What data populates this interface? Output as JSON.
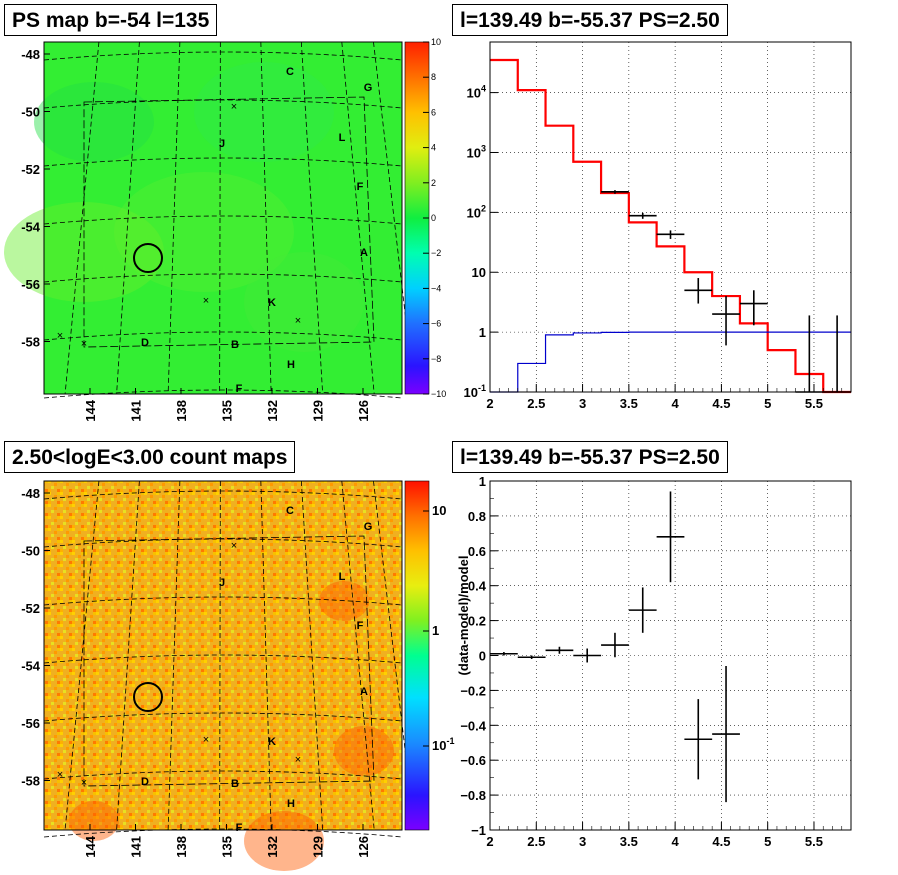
{
  "titles": {
    "map_top": "PS map b=-54 l=135",
    "spec_top": "l=139.49 b=-55.37 PS=2.50",
    "map_bottom": "2.50<logE<3.00 count maps",
    "resid_bottom": "l=139.49 b=-55.37 PS=2.50"
  },
  "colors": {
    "data": "#000000",
    "model_total": "#ff0000",
    "model_ps": "#0000cc",
    "map_top_bg": "#33ee33",
    "map_bottom_bg": "#f0b020"
  },
  "maps": {
    "y_ticks": [
      "-48",
      "-50",
      "-52",
      "-54",
      "-56",
      "-58"
    ],
    "x_ticks": [
      "144",
      "141",
      "138",
      "135",
      "132",
      "129",
      "126"
    ],
    "source_labels": [
      "C",
      "G",
      "L",
      "J",
      "F",
      "A",
      "K",
      "D",
      "B",
      "H",
      "F"
    ],
    "top_colorbar_ticks": [
      "10",
      "8",
      "6",
      "4",
      "2",
      "0",
      "−2",
      "−4",
      "−6",
      "−8",
      "−10"
    ],
    "bottom_colorbar_ticks": [
      "10",
      "1",
      "10-1"
    ]
  },
  "chart_data": [
    {
      "type": "bar",
      "title": "l=139.49 b=-55.37 PS=2.50",
      "xlabel": "",
      "ylabel": "",
      "y_scale": "log",
      "xlim": [
        2,
        5.9
      ],
      "ylim": [
        0.1,
        70000
      ],
      "grid": true,
      "x_ticks": [
        "2",
        "2.5",
        "3",
        "3.5",
        "4",
        "4.5",
        "5",
        "5.5"
      ],
      "y_ticks": [
        "10-1",
        "1",
        "10",
        "102",
        "103",
        "104"
      ],
      "series": [
        {
          "style": "step",
          "color": "#ff0000",
          "bin_edges": [
            2.0,
            2.3,
            2.6,
            2.9,
            3.2,
            3.5,
            3.8,
            4.1,
            4.4,
            4.7,
            5.0,
            5.3,
            5.6,
            5.9
          ],
          "values": [
            35000,
            11000,
            2800,
            700,
            210,
            68,
            27,
            10,
            4,
            1.4,
            0.5,
            0.2,
            0.1
          ]
        },
        {
          "style": "step",
          "color": "#0000cc",
          "bin_edges": [
            2.0,
            2.3,
            2.6,
            2.9,
            3.2,
            3.5,
            3.8,
            4.1,
            4.4,
            4.7,
            5.0,
            5.3,
            5.6,
            5.9
          ],
          "values": [
            0.05,
            0.3,
            0.9,
            0.97,
            0.99,
            1.0,
            1.0,
            1.0,
            1.0,
            1.0,
            1.0,
            1.0,
            1.0
          ]
        },
        {
          "style": "errorbar",
          "color": "#000000",
          "points": [
            {
              "x": 3.35,
              "y": 220,
              "xerr": 0.15,
              "ylo": 205,
              "yhi": 235
            },
            {
              "x": 3.65,
              "y": 88,
              "xerr": 0.15,
              "ylo": 78,
              "yhi": 98
            },
            {
              "x": 3.95,
              "y": 43,
              "xerr": 0.15,
              "ylo": 36,
              "yhi": 50
            },
            {
              "x": 4.25,
              "y": 5,
              "xerr": 0.15,
              "ylo": 3,
              "yhi": 8
            },
            {
              "x": 4.55,
              "y": 2,
              "xerr": 0.15,
              "ylo": 0.6,
              "yhi": 4
            },
            {
              "x": 4.85,
              "y": 3,
              "xerr": 0.15,
              "ylo": 1.3,
              "yhi": 5
            },
            {
              "x": 5.45,
              "y": 0.1,
              "xerr": 0.15,
              "ylo": 0.1,
              "yhi": 1.9
            },
            {
              "x": 5.75,
              "y": 0.1,
              "xerr": 0.15,
              "ylo": 0.1,
              "yhi": 1.9
            }
          ]
        }
      ]
    },
    {
      "type": "scatter",
      "title": "l=139.49 b=-55.37 PS=2.50",
      "xlabel": "",
      "ylabel": "(data-model)/model",
      "xlim": [
        2,
        5.9
      ],
      "ylim": [
        -1,
        1
      ],
      "grid": true,
      "x_ticks": [
        "2",
        "2.5",
        "3",
        "3.5",
        "4",
        "4.5",
        "5",
        "5.5"
      ],
      "y_ticks": [
        "−1",
        "−0.8",
        "−0.6",
        "−0.4",
        "−0.2",
        "0",
        "0.2",
        "0.4",
        "0.6",
        "0.8",
        "1"
      ],
      "series": [
        {
          "style": "errorbar",
          "color": "#000000",
          "points": [
            {
              "x": 2.15,
              "y": 0.01,
              "xerr": 0.15,
              "yerr": 0.01
            },
            {
              "x": 2.45,
              "y": -0.01,
              "xerr": 0.15,
              "yerr": 0.01
            },
            {
              "x": 2.75,
              "y": 0.03,
              "xerr": 0.15,
              "yerr": 0.02
            },
            {
              "x": 3.05,
              "y": 0.0,
              "xerr": 0.15,
              "yerr": 0.04
            },
            {
              "x": 3.35,
              "y": 0.06,
              "xerr": 0.15,
              "yerr": 0.07
            },
            {
              "x": 3.65,
              "y": 0.26,
              "xerr": 0.15,
              "yerr": 0.13
            },
            {
              "x": 3.95,
              "y": 0.68,
              "xerr": 0.15,
              "yerr": 0.26
            },
            {
              "x": 4.25,
              "y": -0.48,
              "xerr": 0.15,
              "yerr": 0.23
            },
            {
              "x": 4.55,
              "y": -0.45,
              "xerr": 0.15,
              "yerr": 0.39
            }
          ]
        }
      ]
    }
  ]
}
